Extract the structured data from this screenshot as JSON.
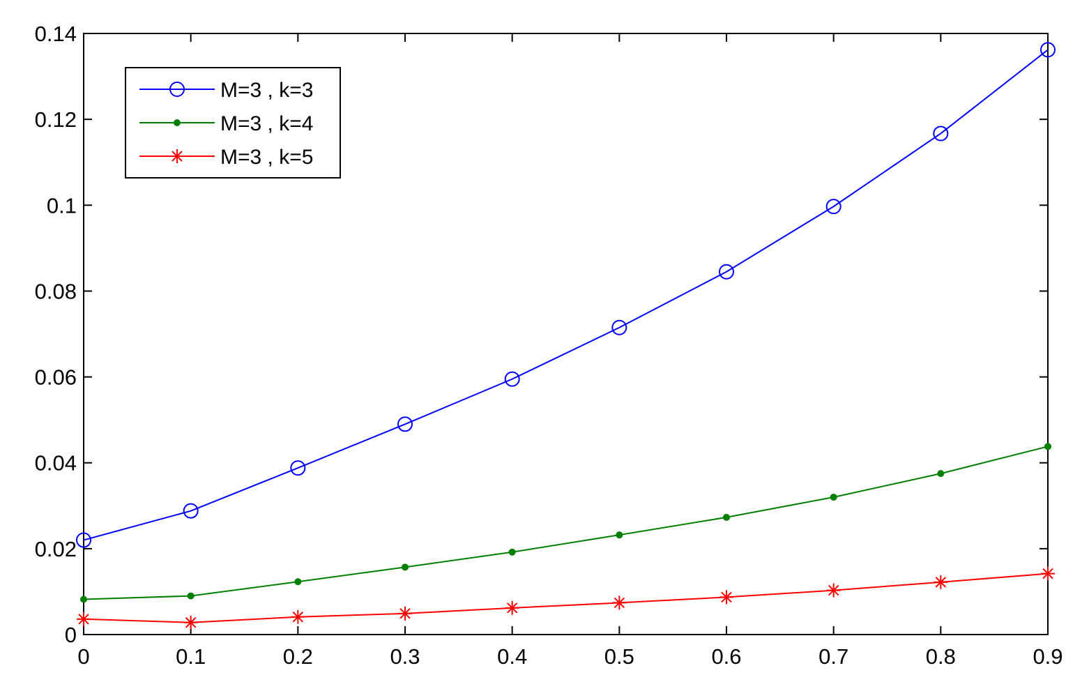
{
  "chart_data": {
    "type": "line",
    "title": "",
    "xlabel": "",
    "ylabel": "",
    "x": [
      0,
      0.1,
      0.2,
      0.3,
      0.4,
      0.5,
      0.6,
      0.7,
      0.8,
      0.9
    ],
    "xlim": [
      0,
      0.9
    ],
    "ylim": [
      0,
      0.14
    ],
    "xticks": [
      "0",
      "0.1",
      "0.2",
      "0.3",
      "0.4",
      "0.5",
      "0.6",
      "0.7",
      "0.8",
      "0.9"
    ],
    "yticks": [
      "0",
      "0.02",
      "0.04",
      "0.06",
      "0.08",
      "0.1",
      "0.12",
      "0.14"
    ],
    "grid": false,
    "legend_position": "top-left",
    "series": [
      {
        "name": "M=3 , k=3",
        "color": "#0000ff",
        "marker": "circle",
        "values": [
          0.022,
          0.0288,
          0.0388,
          0.049,
          0.0595,
          0.0715,
          0.0845,
          0.0997,
          0.1167,
          0.1362
        ]
      },
      {
        "name": "M=3 , k=4",
        "color": "#007f00",
        "marker": "point",
        "values": [
          0.0082,
          0.009,
          0.0123,
          0.0157,
          0.0192,
          0.0232,
          0.0273,
          0.032,
          0.0375,
          0.0438
        ]
      },
      {
        "name": "M=3 , k=5",
        "color": "#ff0000",
        "marker": "star",
        "values": [
          0.0036,
          0.0028,
          0.0041,
          0.0049,
          0.0062,
          0.0074,
          0.0087,
          0.0103,
          0.0122,
          0.0142
        ]
      }
    ]
  }
}
